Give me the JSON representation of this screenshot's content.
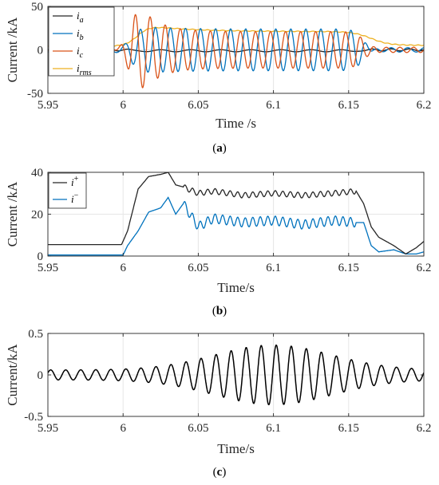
{
  "chart_data": [
    {
      "id": "a",
      "type": "line",
      "caption_letter": "a",
      "xlabel": "Time /s",
      "ylabel": "Current /kA",
      "xlim": [
        5.95,
        6.2
      ],
      "ylim": [
        -50,
        50
      ],
      "xticks": [
        5.95,
        6,
        6.05,
        6.1,
        6.15,
        6.2
      ],
      "xtick_labels": [
        "5.95",
        "6",
        "6.05",
        "6.1",
        "6.15",
        "6.2"
      ],
      "yticks": [
        -50,
        0,
        50
      ],
      "ytick_labels": [
        "-50",
        "0",
        "50"
      ],
      "grid": true,
      "legend_position": "top-left",
      "series": [
        {
          "name": "i",
          "sub": "a",
          "color": "#262626"
        },
        {
          "name": "i",
          "sub": "b",
          "color": "#0072BD"
        },
        {
          "name": "i",
          "sub": "c",
          "color": "#D95319"
        },
        {
          "name": "i",
          "sub": "rms",
          "color": "#EDB120"
        }
      ],
      "fault_window": [
        6.0,
        6.165
      ],
      "fundamental_hz": 100,
      "peak_amplitude_kA": 36,
      "rms_plateau_kA": 21
    },
    {
      "id": "b",
      "type": "line",
      "caption_letter": "b",
      "xlabel": "Time/s",
      "ylabel": "Current /kA",
      "xlim": [
        5.95,
        6.2
      ],
      "ylim": [
        0,
        40
      ],
      "xticks": [
        5.95,
        6,
        6.05,
        6.1,
        6.15,
        6.2
      ],
      "xtick_labels": [
        "5.95",
        "6",
        "6.05",
        "6.1",
        "6.15",
        "6.2"
      ],
      "yticks": [
        0,
        20,
        40
      ],
      "ytick_labels": [
        "0",
        "20",
        "40"
      ],
      "grid": true,
      "legend_position": "top-left",
      "series": [
        {
          "name": "i",
          "sup": "+",
          "color": "#262626",
          "x": [
            5.95,
            5.999,
            6.003,
            6.01,
            6.017,
            6.025,
            6.03,
            6.035,
            6.04,
            6.05,
            6.06,
            6.08,
            6.1,
            6.12,
            6.14,
            6.155,
            6.16,
            6.165,
            6.17,
            6.18,
            6.188,
            6.195,
            6.2
          ],
          "y": [
            5.5,
            5.5,
            12,
            32,
            38,
            39,
            40,
            34,
            33,
            30,
            31,
            29,
            30,
            29,
            30,
            31,
            25,
            14,
            9,
            5,
            1,
            4,
            7
          ]
        },
        {
          "name": "i",
          "sup": "−",
          "color": "#0072BD",
          "x": [
            5.95,
            6.0,
            6.003,
            6.01,
            6.017,
            6.025,
            6.03,
            6.035,
            6.04,
            6.05,
            6.06,
            6.08,
            6.1,
            6.12,
            6.14,
            6.155,
            6.16,
            6.165,
            6.17,
            6.18,
            6.188,
            6.195,
            6.2
          ],
          "y": [
            0.5,
            0.5,
            5,
            12,
            21,
            23,
            28,
            20,
            25,
            14,
            18,
            16,
            17,
            15,
            17,
            16,
            16,
            5,
            2,
            3,
            1,
            1,
            2
          ]
        }
      ]
    },
    {
      "id": "c",
      "type": "line",
      "caption_letter": "c",
      "xlabel": "Time/s",
      "ylabel": "Current/kA",
      "xlim": [
        5.95,
        6.2
      ],
      "ylim": [
        -0.5,
        0.5
      ],
      "xticks": [
        5.95,
        6,
        6.05,
        6.1,
        6.15,
        6.2
      ],
      "xtick_labels": [
        "5.95",
        "6",
        "6.05",
        "6.1",
        "6.15",
        "6.2"
      ],
      "yticks": [
        -0.5,
        0,
        0.5
      ],
      "ytick_labels": [
        "-0.5",
        "0",
        "0.5"
      ],
      "grid": true,
      "series": [
        {
          "color": "#000000",
          "frequency_hz": 100,
          "peak_kA": 0.36,
          "envelope_center_s": 6.1
        }
      ]
    }
  ]
}
